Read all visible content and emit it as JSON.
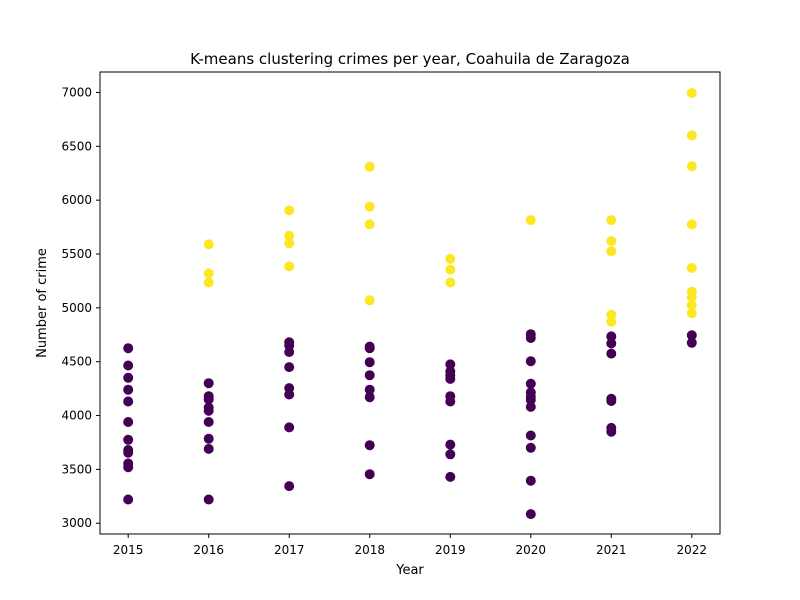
{
  "chart_data": {
    "type": "scatter",
    "title": "K-means clustering crimes per year, Coahuila de Zaragoza",
    "xlabel": "Year",
    "ylabel": "Number of crime",
    "x_ticks": [
      2015,
      2016,
      2017,
      2018,
      2019,
      2020,
      2021,
      2022
    ],
    "y_ticks": [
      3000,
      3500,
      4000,
      4500,
      5000,
      5500,
      6000,
      6500,
      7000
    ],
    "xlim": [
      2014.65,
      2022.35
    ],
    "ylim": [
      2900,
      7190
    ],
    "grid": false,
    "colors": {
      "cluster_low": "#440154",
      "cluster_high": "#fde725"
    },
    "series": [
      {
        "color": "#440154",
        "points": [
          [
            2015,
            4625
          ],
          [
            2015,
            4465
          ],
          [
            2015,
            4350
          ],
          [
            2015,
            4240
          ],
          [
            2015,
            4130
          ],
          [
            2015,
            3940
          ],
          [
            2015,
            3775
          ],
          [
            2015,
            3680
          ],
          [
            2015,
            3655
          ],
          [
            2015,
            3555
          ],
          [
            2015,
            3520
          ],
          [
            2015,
            3220
          ],
          [
            2016,
            4300
          ],
          [
            2016,
            4180
          ],
          [
            2016,
            4150
          ],
          [
            2016,
            4075
          ],
          [
            2016,
            4045
          ],
          [
            2016,
            3940
          ],
          [
            2016,
            3785
          ],
          [
            2016,
            3690
          ],
          [
            2016,
            3220
          ],
          [
            2017,
            4680
          ],
          [
            2017,
            4650
          ],
          [
            2017,
            4590
          ],
          [
            2017,
            4450
          ],
          [
            2017,
            4255
          ],
          [
            2017,
            4195
          ],
          [
            2017,
            3890
          ],
          [
            2017,
            3345
          ],
          [
            2018,
            4640
          ],
          [
            2018,
            4625
          ],
          [
            2018,
            4495
          ],
          [
            2018,
            4375
          ],
          [
            2018,
            4240
          ],
          [
            2018,
            4170
          ],
          [
            2018,
            3725
          ],
          [
            2018,
            3455
          ],
          [
            2019,
            4475
          ],
          [
            2019,
            4410
          ],
          [
            2019,
            4375
          ],
          [
            2019,
            4340
          ],
          [
            2019,
            4180
          ],
          [
            2019,
            4130
          ],
          [
            2019,
            3730
          ],
          [
            2019,
            3640
          ],
          [
            2019,
            3430
          ],
          [
            2020,
            4755
          ],
          [
            2020,
            4720
          ],
          [
            2020,
            4505
          ],
          [
            2020,
            4295
          ],
          [
            2020,
            4215
          ],
          [
            2020,
            4175
          ],
          [
            2020,
            4145
          ],
          [
            2020,
            4080
          ],
          [
            2020,
            3815
          ],
          [
            2020,
            3700
          ],
          [
            2020,
            3395
          ],
          [
            2020,
            3085
          ],
          [
            2021,
            4735
          ],
          [
            2021,
            4670
          ],
          [
            2021,
            4575
          ],
          [
            2021,
            4155
          ],
          [
            2021,
            4135
          ],
          [
            2021,
            3885
          ],
          [
            2021,
            3850
          ],
          [
            2022,
            4745
          ],
          [
            2022,
            4675
          ]
        ]
      },
      {
        "color": "#fde725",
        "points": [
          [
            2016,
            5590
          ],
          [
            2016,
            5320
          ],
          [
            2016,
            5235
          ],
          [
            2017,
            5905
          ],
          [
            2017,
            5670
          ],
          [
            2017,
            5600
          ],
          [
            2017,
            5385
          ],
          [
            2018,
            6310
          ],
          [
            2018,
            5940
          ],
          [
            2018,
            5775
          ],
          [
            2018,
            5070
          ],
          [
            2019,
            5455
          ],
          [
            2019,
            5355
          ],
          [
            2019,
            5235
          ],
          [
            2020,
            5815
          ],
          [
            2021,
            5815
          ],
          [
            2021,
            5620
          ],
          [
            2021,
            5525
          ],
          [
            2021,
            4935
          ],
          [
            2021,
            4870
          ],
          [
            2022,
            6995
          ],
          [
            2022,
            6600
          ],
          [
            2022,
            6315
          ],
          [
            2022,
            5775
          ],
          [
            2022,
            5370
          ],
          [
            2022,
            5150
          ],
          [
            2022,
            5100
          ],
          [
            2022,
            5025
          ],
          [
            2022,
            4950
          ]
        ]
      }
    ]
  }
}
